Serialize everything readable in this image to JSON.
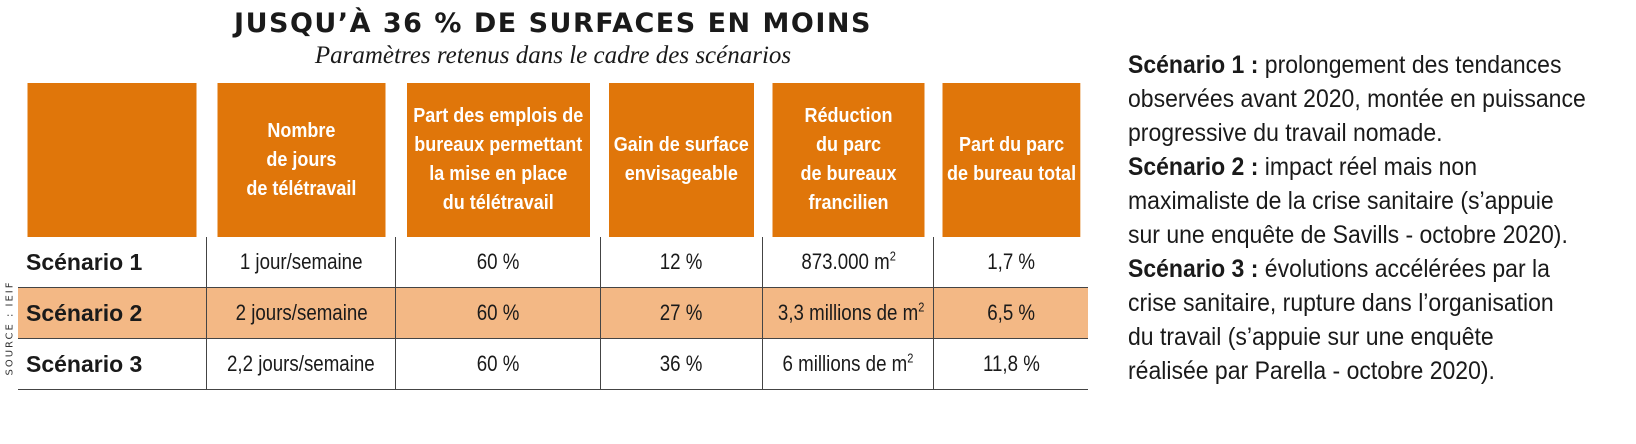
{
  "title": "JUSQU’À 36 % DE SURFACES EN MOINS",
  "subtitle": "Paramètres retenus dans le cadre des scénarios",
  "source": "SOURCE : IEIF",
  "table": {
    "headers": [
      "",
      "Nombre\nde jours\nde télétravail",
      "Part des emplois de\nbureaux permettant\nla mise en place\ndu télétravail",
      "Gain de surface\nenvisageable",
      "Réduction\ndu parc\nde bureaux\nfrancilien",
      "Part du parc\nde bureau total"
    ],
    "rows": [
      {
        "scenario": "Scénario 1",
        "jours": "1 jour/semaine",
        "part_emplois": "60 %",
        "gain": "12 %",
        "reduction": "873.000 m",
        "reduction_unit_exp": "2",
        "part_parc": "1,7 %"
      },
      {
        "scenario": "Scénario 2",
        "jours": "2 jours/semaine",
        "part_emplois": "60 %",
        "gain": "27 %",
        "reduction": "3,3 millions de m",
        "reduction_unit_exp": "2",
        "part_parc": "6,5 %"
      },
      {
        "scenario": "Scénario 3",
        "jours": "2,2 jours/semaine",
        "part_emplois": "60 %",
        "gain": "36 %",
        "reduction": "6 millions de m",
        "reduction_unit_exp": "2",
        "part_parc": "11,8 %"
      }
    ]
  },
  "notes": [
    {
      "label": "Scénario 1 :",
      "text": " prolongement des tendances\nobservées avant 2020, montée en puissance\nprogressive du travail nomade."
    },
    {
      "label": "Scénario 2 :",
      "text": " impact réel mais non\nmaximaliste de la crise sanitaire (s’appuie\nsur une enquête de Savills - octobre 2020)."
    },
    {
      "label": "Scénario 3 :",
      "text": " évolutions accélérées par la\ncrise sanitaire, rupture dans l’organisation\ndu travail (s’appuie sur une enquête\nréalisée par Parella - octobre 2020)."
    }
  ],
  "colors": {
    "header_bg": "#e0760a",
    "highlight_row": "#f3b885"
  }
}
